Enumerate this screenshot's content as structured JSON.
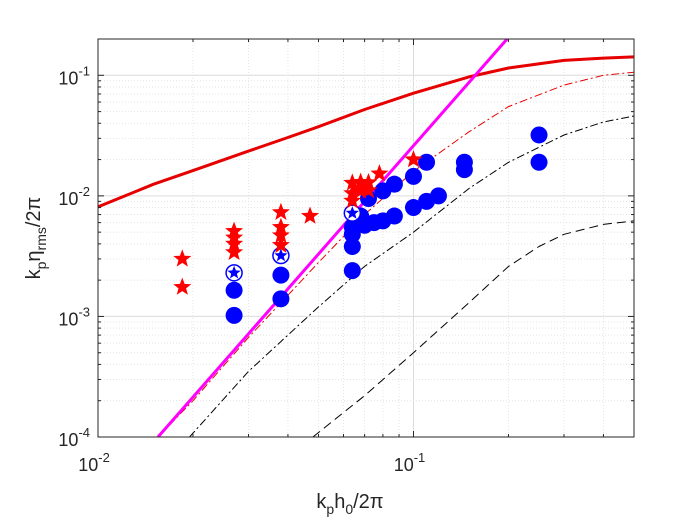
{
  "chart_data": {
    "type": "scatter",
    "title": "",
    "xscale": "log",
    "yscale": "log",
    "xlim": [
      0.01,
      0.5
    ],
    "ylim": [
      0.0001,
      0.2
    ],
    "grid": true,
    "minor_grid": true,
    "xlabel": {
      "base": "k",
      "sub1": "p",
      "mid": "h",
      "sub2": "0",
      "tail": "/2π"
    },
    "ylabel": {
      "base": "k",
      "sub1": "p",
      "mid": "η",
      "sub2": "rms",
      "tail": "/2π"
    },
    "xticks": [
      {
        "value": 0.01,
        "mantissa": "10",
        "exponent": "-2"
      },
      {
        "value": 0.1,
        "mantissa": "10",
        "exponent": "-1"
      }
    ],
    "yticks": [
      {
        "value": 0.0001,
        "mantissa": "10",
        "exponent": "-4"
      },
      {
        "value": 0.001,
        "mantissa": "10",
        "exponent": "-3"
      },
      {
        "value": 0.01,
        "mantissa": "10",
        "exponent": "-2"
      },
      {
        "value": 0.1,
        "mantissa": "10",
        "exponent": "-1"
      }
    ],
    "curves": [
      {
        "style": "solid",
        "color": "#e60000",
        "width": 3,
        "points": [
          [
            0.01,
            0.0081
          ],
          [
            0.015,
            0.0125
          ],
          [
            0.02,
            0.0162
          ],
          [
            0.03,
            0.0235
          ],
          [
            0.04,
            0.0305
          ],
          [
            0.05,
            0.0375
          ],
          [
            0.07,
            0.052
          ],
          [
            0.1,
            0.071
          ],
          [
            0.15,
            0.097
          ],
          [
            0.2,
            0.115
          ],
          [
            0.3,
            0.133
          ],
          [
            0.4,
            0.139
          ],
          [
            0.5,
            0.142
          ]
        ]
      },
      {
        "style": "dashdot",
        "color": "#e60000",
        "width": 1,
        "points": [
          [
            0.0155,
            0.0001
          ],
          [
            0.02,
            0.0002
          ],
          [
            0.03,
            0.00067
          ],
          [
            0.05,
            0.0028
          ],
          [
            0.07,
            0.007
          ],
          [
            0.1,
            0.016
          ],
          [
            0.15,
            0.034
          ],
          [
            0.2,
            0.055
          ],
          [
            0.3,
            0.083
          ],
          [
            0.4,
            0.1
          ],
          [
            0.5,
            0.106
          ]
        ]
      },
      {
        "style": "dashdot",
        "color": "#000000",
        "width": 1,
        "points": [
          [
            0.0195,
            0.0001
          ],
          [
            0.03,
            0.00035
          ],
          [
            0.05,
            0.0012
          ],
          [
            0.07,
            0.0026
          ],
          [
            0.1,
            0.005
          ],
          [
            0.15,
            0.0115
          ],
          [
            0.2,
            0.019
          ],
          [
            0.3,
            0.032
          ],
          [
            0.4,
            0.041
          ],
          [
            0.5,
            0.046
          ]
        ]
      },
      {
        "style": "dashed",
        "color": "#000000",
        "width": 1,
        "points": [
          [
            0.048,
            0.0001
          ],
          [
            0.07,
            0.00022
          ],
          [
            0.1,
            0.0005
          ],
          [
            0.15,
            0.0013
          ],
          [
            0.2,
            0.0026
          ],
          [
            0.25,
            0.0038
          ],
          [
            0.3,
            0.0048
          ],
          [
            0.4,
            0.0058
          ],
          [
            0.5,
            0.0062
          ]
        ]
      },
      {
        "style": "solid",
        "color": "#ff00ff",
        "width": 3,
        "points": [
          [
            0.0155,
            0.0001
          ],
          [
            0.198,
            0.2
          ]
        ]
      }
    ],
    "series": [
      {
        "marker": "filled-circle",
        "color": "#0000ff",
        "points": [
          [
            0.027,
            0.00165
          ],
          [
            0.027,
            0.00102
          ],
          [
            0.038,
            0.0022
          ],
          [
            0.038,
            0.0014
          ],
          [
            0.064,
            0.0055
          ],
          [
            0.064,
            0.0048
          ],
          [
            0.064,
            0.0038
          ],
          [
            0.064,
            0.0024
          ],
          [
            0.068,
            0.0068
          ],
          [
            0.07,
            0.0057
          ],
          [
            0.072,
            0.0095
          ],
          [
            0.075,
            0.006
          ],
          [
            0.08,
            0.011
          ],
          [
            0.08,
            0.0062
          ],
          [
            0.087,
            0.0125
          ],
          [
            0.087,
            0.0068
          ],
          [
            0.1,
            0.0145
          ],
          [
            0.1,
            0.008
          ],
          [
            0.11,
            0.019
          ],
          [
            0.11,
            0.009
          ],
          [
            0.12,
            0.01
          ],
          [
            0.145,
            0.019
          ],
          [
            0.145,
            0.0165
          ],
          [
            0.25,
            0.032
          ],
          [
            0.25,
            0.019
          ]
        ]
      },
      {
        "marker": "circled-star",
        "color": "#0000ff",
        "points": [
          [
            0.027,
            0.0023
          ],
          [
            0.038,
            0.0032
          ],
          [
            0.064,
            0.0072
          ]
        ]
      },
      {
        "marker": "star",
        "color": "#ff0000",
        "points": [
          [
            0.0185,
            0.003
          ],
          [
            0.0185,
            0.00175
          ],
          [
            0.027,
            0.0051
          ],
          [
            0.027,
            0.0045
          ],
          [
            0.027,
            0.004
          ],
          [
            0.027,
            0.0034
          ],
          [
            0.038,
            0.0073
          ],
          [
            0.038,
            0.0055
          ],
          [
            0.038,
            0.0047
          ],
          [
            0.038,
            0.0039
          ],
          [
            0.047,
            0.0068
          ],
          [
            0.064,
            0.0128
          ],
          [
            0.064,
            0.0105
          ],
          [
            0.064,
            0.0091
          ],
          [
            0.068,
            0.013
          ],
          [
            0.068,
            0.011
          ],
          [
            0.072,
            0.0129
          ],
          [
            0.072,
            0.0111
          ],
          [
            0.078,
            0.0153
          ],
          [
            0.1,
            0.02
          ]
        ]
      }
    ]
  }
}
